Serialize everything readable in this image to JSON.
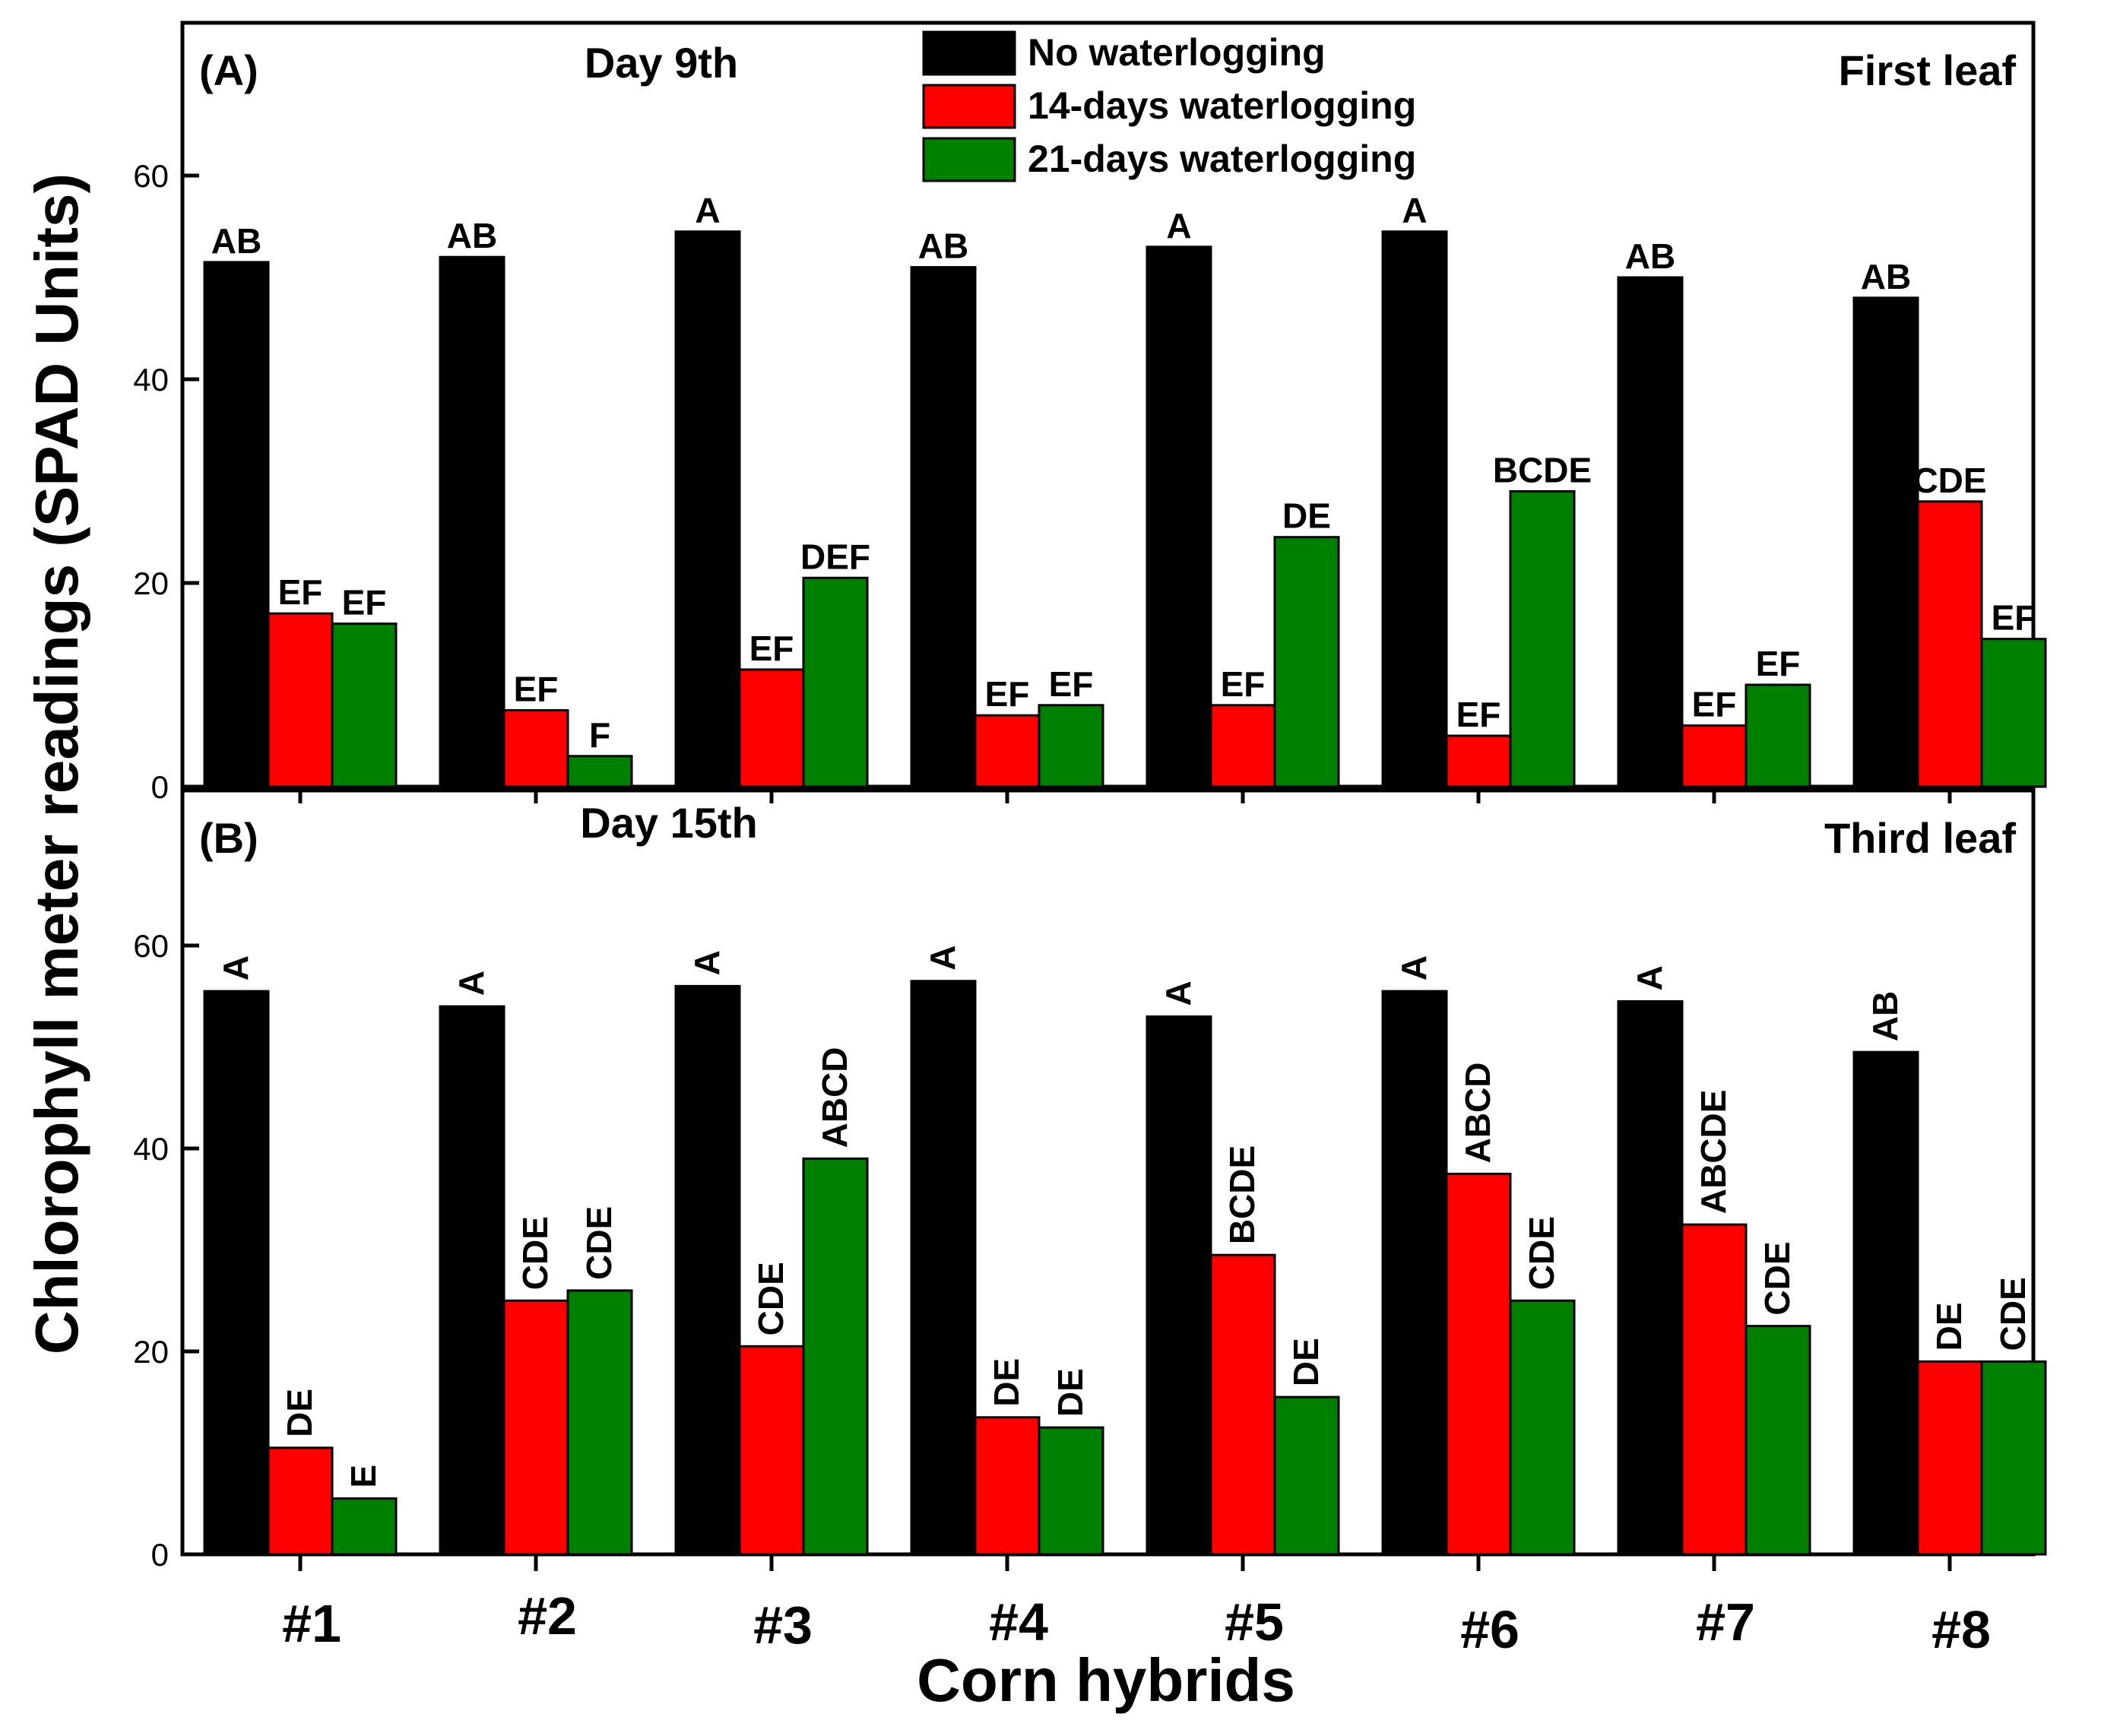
{
  "chart_data": {
    "type": "bar",
    "xlabel": "Corn hybrids",
    "ylabel": "Chlorophyll meter readings (SPAD Units)",
    "categories": [
      "#1",
      "#2",
      "#3",
      "#4",
      "#5",
      "#6",
      "#7",
      "#8"
    ],
    "legend": {
      "placement": "top-center",
      "entries": [
        {
          "name": "No waterlogging",
          "color": "#000000"
        },
        {
          "name": "14-days waterlogging",
          "color": "#ff0000"
        },
        {
          "name": "21-days waterlogging",
          "color": "#008000"
        }
      ]
    },
    "panels": [
      {
        "id": "A",
        "label": "(A)",
        "day": "Day 9th",
        "leaf": "First leaf",
        "ylim": [
          0,
          75
        ],
        "yticks": [
          "0",
          "20",
          "40",
          "60"
        ],
        "label_rotation": 0,
        "series": [
          {
            "name": "No waterlogging",
            "color": "#000000",
            "values": [
              51.5,
              52,
              54.5,
              51,
              53,
              54.5,
              50,
              48
            ],
            "letters": [
              "AB",
              "AB",
              "A",
              "AB",
              "A",
              "A",
              "AB",
              "AB"
            ]
          },
          {
            "name": "14-days waterlogging",
            "color": "#ff0000",
            "values": [
              17,
              7.5,
              11.5,
              7,
              8,
              5,
              6,
              28
            ],
            "letters": [
              "EF",
              "EF",
              "EF",
              "EF",
              "EF",
              "EF",
              "EF",
              "CDE"
            ]
          },
          {
            "name": "21-days waterlogging",
            "color": "#008000",
            "values": [
              16,
              3,
              20.5,
              8,
              24.5,
              29,
              10,
              14.5
            ],
            "letters": [
              "EF",
              "F",
              "DEF",
              "EF",
              "DE",
              "BCDE",
              "EF",
              "EF"
            ]
          }
        ]
      },
      {
        "id": "B",
        "label": "(B)",
        "day": "Day 15th",
        "leaf": "Third leaf",
        "ylim": [
          0,
          75
        ],
        "yticks": [
          "0",
          "20",
          "40",
          "60"
        ],
        "label_rotation": -90,
        "series": [
          {
            "name": "No waterlogging",
            "color": "#000000",
            "values": [
              55.5,
              54,
              56,
              56.5,
              53,
              55.5,
              54.5,
              49.5
            ],
            "letters": [
              "A",
              "A",
              "A",
              "A",
              "A",
              "A",
              "A",
              "AB"
            ]
          },
          {
            "name": "14-days waterlogging",
            "color": "#ff0000",
            "values": [
              10.5,
              25,
              20.5,
              13.5,
              29.5,
              37.5,
              32.5,
              19
            ],
            "letters": [
              "DE",
              "CDE",
              "CDE",
              "DE",
              "BCDE",
              "ABCD",
              "ABCDE",
              "DE"
            ]
          },
          {
            "name": "21-days waterlogging",
            "color": "#008000",
            "values": [
              5.5,
              26,
              39,
              12.5,
              15.5,
              25,
              22.5,
              19
            ],
            "letters": [
              "E",
              "CDE",
              "ABCD",
              "DE",
              "DE",
              "CDE",
              "CDE",
              "CDE"
            ]
          }
        ]
      }
    ]
  }
}
